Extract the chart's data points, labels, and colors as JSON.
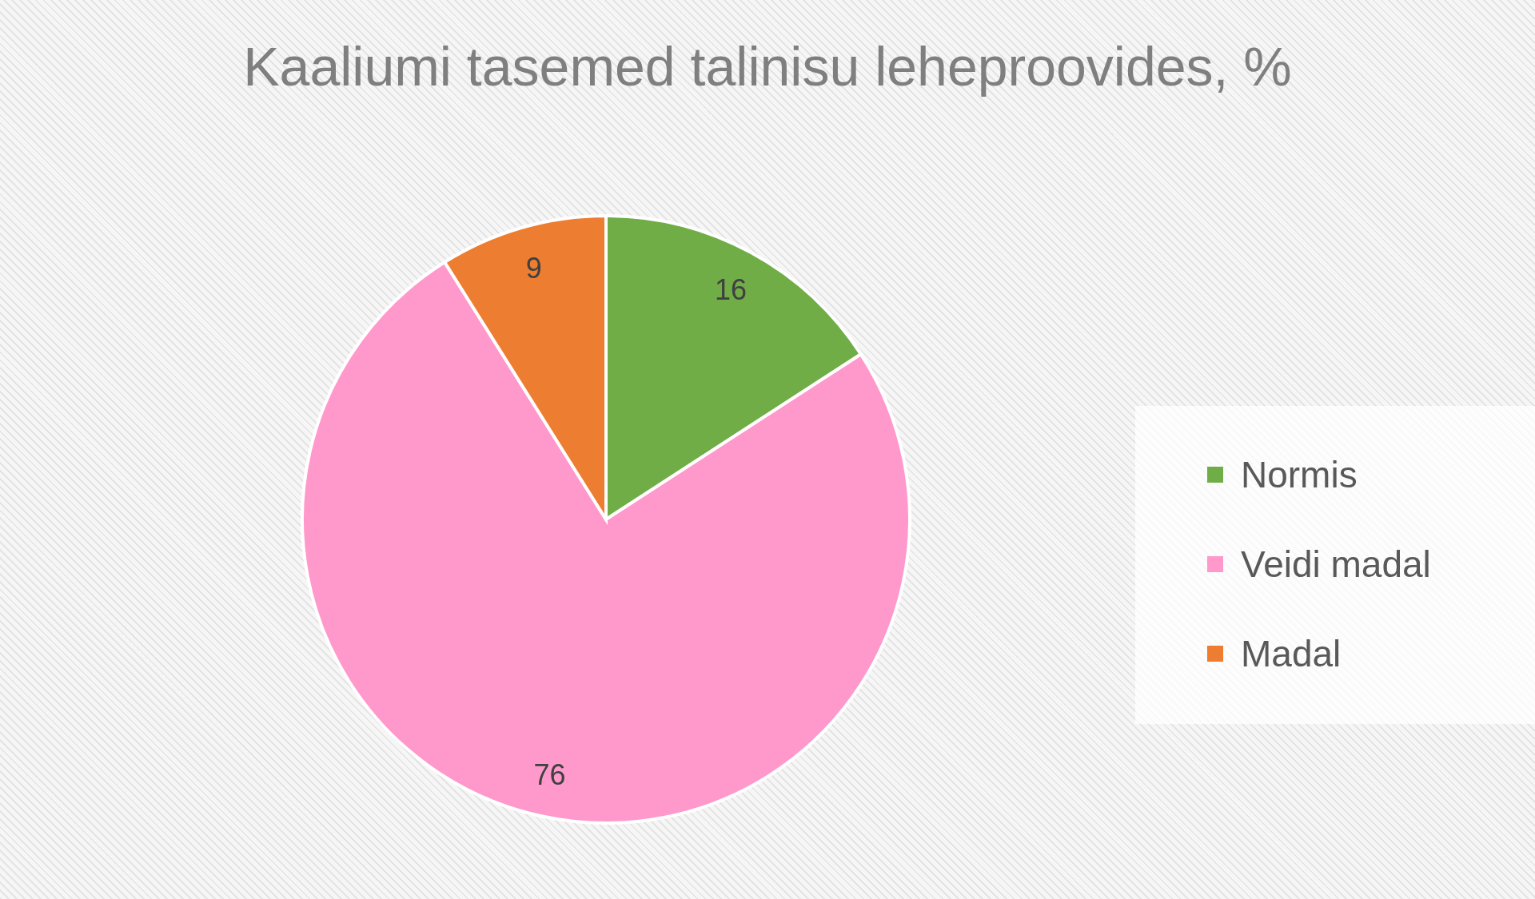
{
  "chart_data": {
    "type": "pie",
    "title": "Kaaliumi tasemed talinisu leheproovides, %",
    "categories": [
      "Normis",
      "Veidi madal",
      "Madal"
    ],
    "values": [
      16,
      76,
      9
    ],
    "colors": [
      "#70ad47",
      "#ff99cc",
      "#ed7d31"
    ],
    "data_labels": true,
    "legend": "right"
  }
}
